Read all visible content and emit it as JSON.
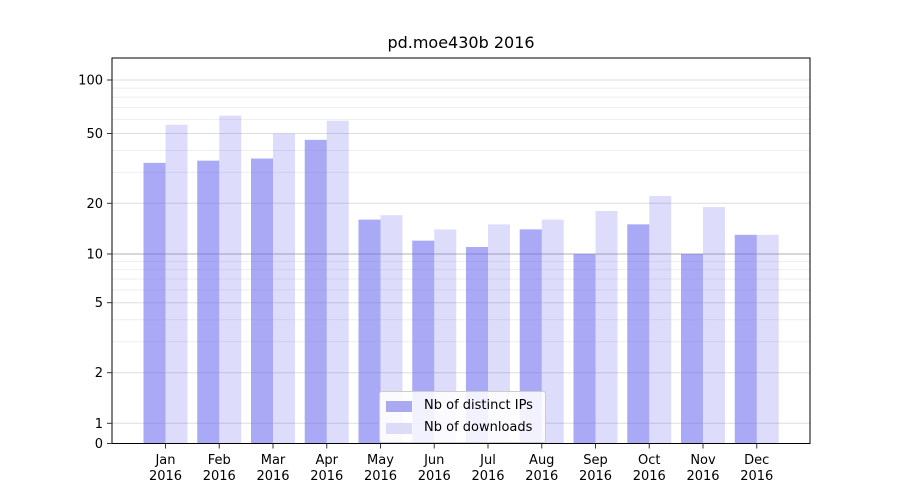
{
  "title": "pd.moe430b 2016",
  "year": "2016",
  "chart_data": {
    "type": "bar",
    "title": "pd.moe430b 2016",
    "categories": [
      "Jan 2016",
      "Feb 2016",
      "Mar 2016",
      "Apr 2016",
      "May 2016",
      "Jun 2016",
      "Jul 2016",
      "Aug 2016",
      "Sep 2016",
      "Oct 2016",
      "Nov 2016",
      "Dec 2016"
    ],
    "month_labels": [
      "Jan",
      "Feb",
      "Mar",
      "Apr",
      "May",
      "Jun",
      "Jul",
      "Aug",
      "Sep",
      "Oct",
      "Nov",
      "Dec"
    ],
    "year_label": "2016",
    "series": [
      {
        "name": "Nb of distinct IPs",
        "values": [
          34,
          35,
          36,
          46,
          16,
          12,
          11,
          14,
          10,
          15,
          10,
          13
        ],
        "color": "#6666ee",
        "opacity": 0.56,
        "swatch_color": "#a9a9f0"
      },
      {
        "name": "Nb of downloads",
        "values": [
          56,
          63,
          50,
          59,
          17,
          14,
          15,
          16,
          18,
          22,
          19,
          13
        ],
        "color": "#6666ee",
        "opacity": 0.22,
        "swatch_color": "#dcdcf9"
      }
    ],
    "yscale": "symlog",
    "yticks": [
      0,
      1,
      2,
      5,
      10,
      20,
      50,
      100
    ],
    "ylim": [
      0,
      130
    ],
    "xlabel": "",
    "ylabel": "",
    "grid": true,
    "legend_position": "lower-center",
    "colors": {
      "grid_minor": "#eeeeee",
      "grid_major": "#dddddd",
      "grid_ten_line": "#b0b0b0",
      "spine": "#000000",
      "tick": "#333333"
    }
  }
}
